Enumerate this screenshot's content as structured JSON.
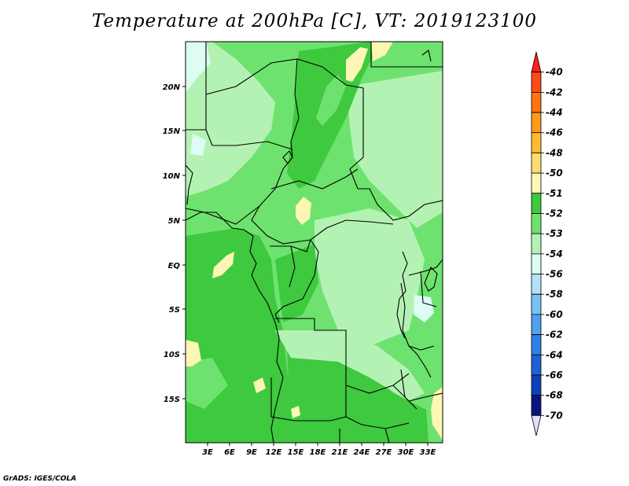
{
  "title": "Temperature at 200hPa [C], VT: 2019123100",
  "credit": "GrADS: IGES/COLA",
  "lat_ticks": [
    "20N",
    "15N",
    "10N",
    "5N",
    "EQ",
    "5S",
    "10S",
    "15S"
  ],
  "lon_ticks": [
    "3E",
    "6E",
    "9E",
    "12E",
    "15E",
    "18E",
    "21E",
    "24E",
    "27E",
    "30E",
    "33E"
  ],
  "colorbar": {
    "labels": [
      "-40",
      "-42",
      "-44",
      "-46",
      "-48",
      "-50",
      "-51",
      "-52",
      "-53",
      "-54",
      "-56",
      "-58",
      "-60",
      "-62",
      "-64",
      "-66",
      "-68",
      "-70"
    ],
    "colors": [
      "#ff2020",
      "#ff4a18",
      "#ff7310",
      "#ff9a18",
      "#ffba30",
      "#ffdc70",
      "#fdf6b4",
      "#3ec93e",
      "#6ee26e",
      "#b4f2b4",
      "#dcfcf4",
      "#b4e2fc",
      "#78c0f4",
      "#4ea2ee",
      "#2e80e6",
      "#1e60d8",
      "#1040b8",
      "#0a1680",
      "#e0e0f8"
    ]
  }
}
